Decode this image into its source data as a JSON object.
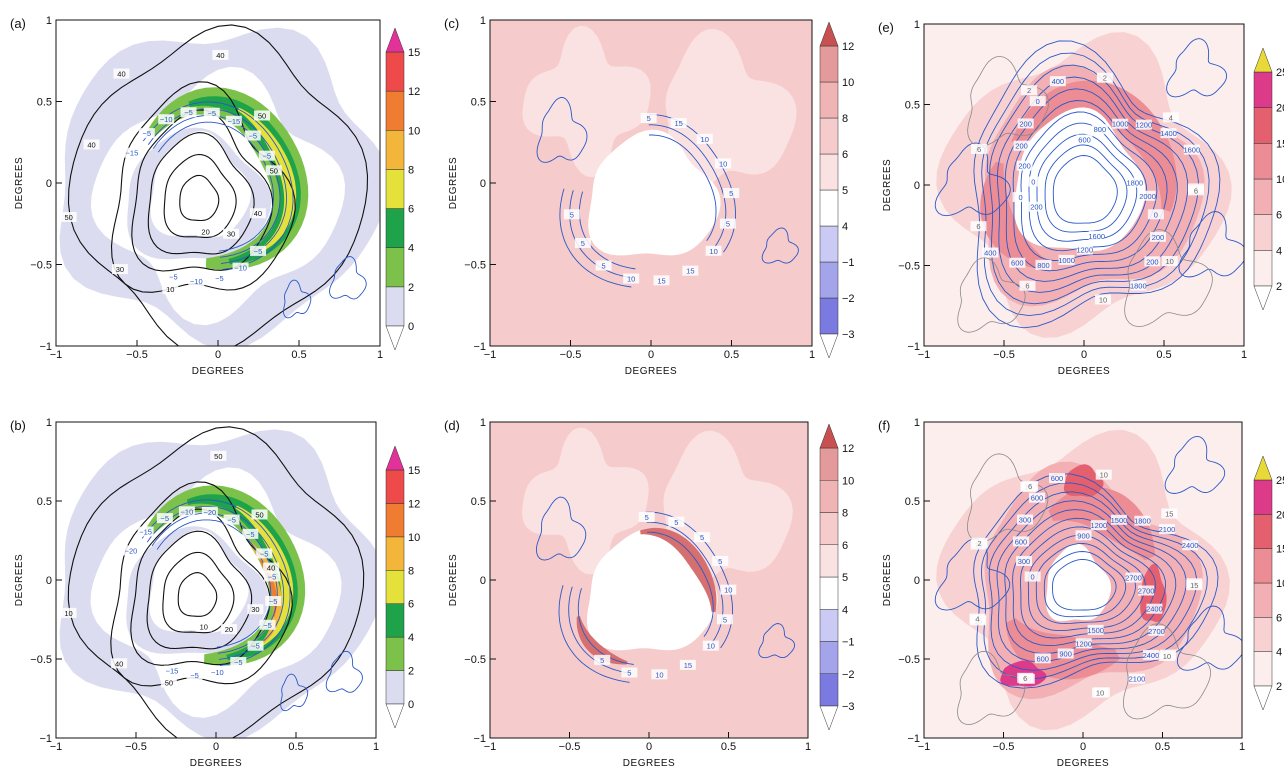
{
  "axis_label": "DEGREES",
  "tick_labels": [
    "−1",
    "−0.5",
    "0",
    "0.5",
    "1"
  ],
  "panels": [
    {
      "id": "a",
      "label": "(a)",
      "fill_colors": [
        "#dcdcf0",
        "#7cc24a",
        "#1ea24a",
        "#e4e23a",
        "#f4b63a",
        "#f07c32",
        "#ee4a4a",
        "#e2329a"
      ],
      "colorbar": {
        "levels": [
          "0",
          "2",
          "4",
          "6",
          "8",
          "10",
          "12",
          "15"
        ],
        "top_arrow": true,
        "bottom_arrow": true
      },
      "contour_labels_black": [
        "40",
        "50",
        "50",
        "40",
        "30",
        "20",
        "10",
        "30",
        "50",
        "40",
        "40"
      ],
      "contour_labels_blue": [
        "−5",
        "−10",
        "−5",
        "−10",
        "−5",
        "−15",
        "−5",
        "−10",
        "−5",
        "−5",
        "−15",
        "−5",
        "−5"
      ]
    },
    {
      "id": "b",
      "label": "(b)",
      "fill_colors": [
        "#dcdcf0",
        "#7cc24a",
        "#1ea24a",
        "#e4e23a",
        "#f4b63a",
        "#f07c32",
        "#ee4a4a",
        "#e2329a"
      ],
      "colorbar": {
        "levels": [
          "0",
          "2",
          "4",
          "6",
          "8",
          "10",
          "12",
          "15"
        ],
        "top_arrow": true,
        "bottom_arrow": true
      },
      "contour_labels_black": [
        "50",
        "50",
        "40",
        "30",
        "20",
        "10",
        "50",
        "40",
        "10"
      ],
      "contour_labels_blue": [
        "−5",
        "−5",
        "−5",
        "−5",
        "−10",
        "−5",
        "−15",
        "−20",
        "−15",
        "−5",
        "−10",
        "−20",
        "−5",
        "−5",
        "−5",
        "−5"
      ]
    },
    {
      "id": "c",
      "label": "(c)",
      "fill_colors": [
        "#7a7ae0",
        "#a4a4ea",
        "#cacaf4",
        "#ffffff",
        "#fbe2e2",
        "#f6cbcb",
        "#f0b4b4",
        "#e49a9a",
        "#d67070",
        "#c85050"
      ],
      "colorbar": {
        "levels": [
          "−3",
          "−2",
          "−1",
          "4",
          "5",
          "6",
          "8",
          "10",
          "12"
        ],
        "top_arrow": true,
        "bottom_arrow": true
      },
      "contour_labels_blue": [
        "5",
        "15",
        "10",
        "10",
        "5",
        "5",
        "10",
        "15",
        "15",
        "10",
        "5",
        "5",
        "5"
      ]
    },
    {
      "id": "d",
      "label": "(d)",
      "fill_colors": [
        "#7a7ae0",
        "#a4a4ea",
        "#cacaf4",
        "#ffffff",
        "#fbe2e2",
        "#f6cbcb",
        "#f0b4b4",
        "#e49a9a",
        "#d67070",
        "#c85050"
      ],
      "colorbar": {
        "levels": [
          "−3",
          "−2",
          "−1",
          "4",
          "5",
          "6",
          "8",
          "10",
          "12"
        ],
        "top_arrow": true,
        "bottom_arrow": true
      },
      "contour_labels_blue": [
        "5",
        "5",
        "5",
        "5",
        "10",
        "5",
        "10",
        "15",
        "10",
        "5",
        "5"
      ]
    },
    {
      "id": "e",
      "label": "(e)",
      "fill_colors": [
        "#fdeeee",
        "#f8d2d2",
        "#f2b0b4",
        "#ec8c94",
        "#e4606e",
        "#de3a8a",
        "#e8d838"
      ],
      "colorbar": {
        "levels": [
          "2",
          "4",
          "6",
          "10",
          "15",
          "20",
          "25"
        ],
        "top_arrow": true,
        "bottom_arrow": true
      },
      "contour_labels_blue": [
        "0",
        "200",
        "200",
        "200",
        "0",
        "400",
        "600",
        "800",
        "1000",
        "1200",
        "1400",
        "1600",
        "1800",
        "2000",
        "0",
        "200",
        "200",
        "1800",
        "1600",
        "1200",
        "1000",
        "800",
        "600",
        "400",
        "200",
        "0"
      ],
      "contour_labels_gray": [
        "4",
        "10",
        "10",
        "6",
        "6",
        "6",
        "2",
        "2",
        "4",
        "6"
      ]
    },
    {
      "id": "f",
      "label": "(f)",
      "fill_colors": [
        "#fdeeee",
        "#f8d2d2",
        "#f2b0b4",
        "#ec8c94",
        "#e4606e",
        "#de3a8a",
        "#e8d838"
      ],
      "colorbar": {
        "levels": [
          "2",
          "4",
          "6",
          "10",
          "15",
          "20",
          "25"
        ],
        "top_arrow": true,
        "bottom_arrow": true
      },
      "contour_labels_blue": [
        "0",
        "300",
        "600",
        "300",
        "600",
        "600",
        "900",
        "1200",
        "1500",
        "1800",
        "2100",
        "2400",
        "2700",
        "2700",
        "2400",
        "2700",
        "2400",
        "2100",
        "1500",
        "1200",
        "900",
        "600"
      ],
      "contour_labels_gray": [
        "4",
        "2",
        "6",
        "10",
        "15",
        "15",
        "10",
        "10",
        "15",
        "15",
        "10",
        "10",
        "6",
        "4",
        "2",
        "6"
      ]
    }
  ],
  "chart_data": [
    {
      "type": "heatmap",
      "panel": "(a)",
      "xlabel": "DEGREES",
      "ylabel": "DEGREES",
      "xlim": [
        -1,
        1
      ],
      "ylim": [
        -1,
        1
      ],
      "colorbar_levels": [
        0,
        2,
        4,
        6,
        8,
        10,
        12,
        15
      ],
      "black_contours": [
        10,
        20,
        30,
        40,
        50
      ],
      "blue_contours": [
        -5,
        -10,
        -15
      ]
    },
    {
      "type": "heatmap",
      "panel": "(b)",
      "xlabel": "DEGREES",
      "ylabel": "DEGREES",
      "xlim": [
        -1,
        1
      ],
      "ylim": [
        -1,
        1
      ],
      "colorbar_levels": [
        0,
        2,
        4,
        6,
        8,
        10,
        12,
        15
      ],
      "black_contours": [
        10,
        20,
        30,
        40,
        50
      ],
      "blue_contours": [
        -5,
        -10,
        -15,
        -20
      ]
    },
    {
      "type": "heatmap",
      "panel": "(c)",
      "xlabel": "DEGREES",
      "ylabel": "DEGREES",
      "xlim": [
        -1,
        1
      ],
      "ylim": [
        -1,
        1
      ],
      "colorbar_levels": [
        -3,
        -2,
        -1,
        4,
        5,
        6,
        8,
        10,
        12
      ],
      "blue_contours": [
        5,
        10,
        15
      ]
    },
    {
      "type": "heatmap",
      "panel": "(d)",
      "xlabel": "DEGREES",
      "ylabel": "DEGREES",
      "xlim": [
        -1,
        1
      ],
      "ylim": [
        -1,
        1
      ],
      "colorbar_levels": [
        -3,
        -2,
        -1,
        4,
        5,
        6,
        8,
        10,
        12
      ],
      "blue_contours": [
        5,
        10,
        15
      ]
    },
    {
      "type": "heatmap",
      "panel": "(e)",
      "xlabel": "DEGREES",
      "ylabel": "DEGREES",
      "xlim": [
        -1,
        1
      ],
      "ylim": [
        -1,
        1
      ],
      "colorbar_levels": [
        2,
        4,
        6,
        10,
        15,
        20,
        25
      ],
      "blue_contours": [
        0,
        200,
        400,
        600,
        800,
        1000,
        1200,
        1400,
        1600,
        1800,
        2000
      ],
      "gray_contours": [
        2,
        4,
        6,
        10
      ]
    },
    {
      "type": "heatmap",
      "panel": "(f)",
      "xlabel": "DEGREES",
      "ylabel": "DEGREES",
      "xlim": [
        -1,
        1
      ],
      "ylim": [
        -1,
        1
      ],
      "colorbar_levels": [
        2,
        4,
        6,
        10,
        15,
        20,
        25
      ],
      "blue_contours": [
        0,
        300,
        600,
        900,
        1200,
        1500,
        1800,
        2100,
        2400,
        2700
      ],
      "gray_contours": [
        2,
        4,
        6,
        10,
        15
      ]
    }
  ]
}
